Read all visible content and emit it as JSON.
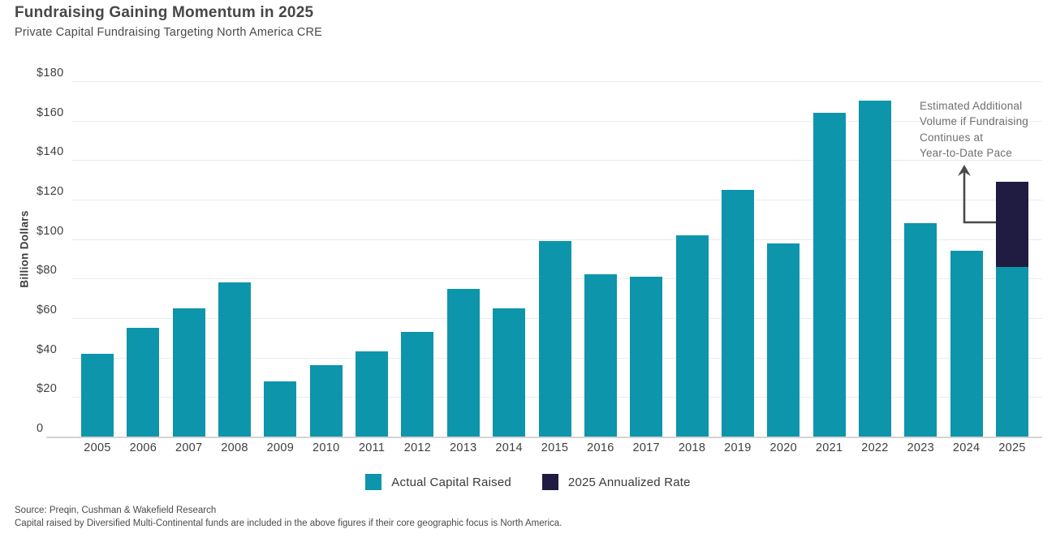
{
  "header": {
    "title": "Fundraising Gaining Momentum in 2025",
    "subtitle": "Private Capital Fundraising Targeting North America CRE"
  },
  "chart_data": {
    "type": "bar",
    "stacked": true,
    "title": "Fundraising Gaining Momentum in 2025",
    "subtitle": "Private Capital Fundraising Targeting North America CRE",
    "xlabel": "",
    "ylabel": "Billion Dollars",
    "ylim": [
      0,
      180
    ],
    "ytick_step": 20,
    "ytick_labels": [
      "0",
      "$20",
      "$40",
      "$60",
      "$80",
      "$100",
      "$120",
      "$140",
      "$160",
      "$180"
    ],
    "grid": true,
    "legend_position": "bottom",
    "categories": [
      "2005",
      "2006",
      "2007",
      "2008",
      "2009",
      "2010",
      "2011",
      "2012",
      "2013",
      "2014",
      "2015",
      "2016",
      "2017",
      "2018",
      "2019",
      "2020",
      "2021",
      "2022",
      "2023",
      "2024",
      "2025"
    ],
    "series": [
      {
        "name": "Actual Capital Raised",
        "color": "#0d95ab",
        "values": [
          42,
          55,
          65,
          78,
          28,
          36,
          43,
          53,
          75,
          65,
          99,
          82,
          81,
          102,
          125,
          98,
          164,
          170,
          108,
          94,
          86
        ]
      },
      {
        "name": "2025 Annualized Rate",
        "color": "#1f1b41",
        "values": [
          0,
          0,
          0,
          0,
          0,
          0,
          0,
          0,
          0,
          0,
          0,
          0,
          0,
          0,
          0,
          0,
          0,
          0,
          0,
          0,
          43
        ]
      }
    ],
    "annotation": "Estimated Additional Volume if Fundraising Continues at Year-to-Date Pace"
  },
  "annotation": {
    "lines": [
      "Estimated Additional",
      "Volume if Fundraising",
      "Continues at",
      "Year-to-Date Pace"
    ]
  },
  "legend": {
    "items": [
      {
        "label": "Actual Capital Raised",
        "color": "#0d95ab"
      },
      {
        "label": "2025 Annualized Rate",
        "color": "#1f1b41"
      }
    ]
  },
  "footer": {
    "line1": "Source: Preqin, Cushman & Wakefield Research",
    "line2": "Capital raised by Diversified Multi-Continental funds are included in the above figures if their core geographic focus is North America."
  },
  "icons": {
    "arrow": "up-arrow-elbow"
  }
}
